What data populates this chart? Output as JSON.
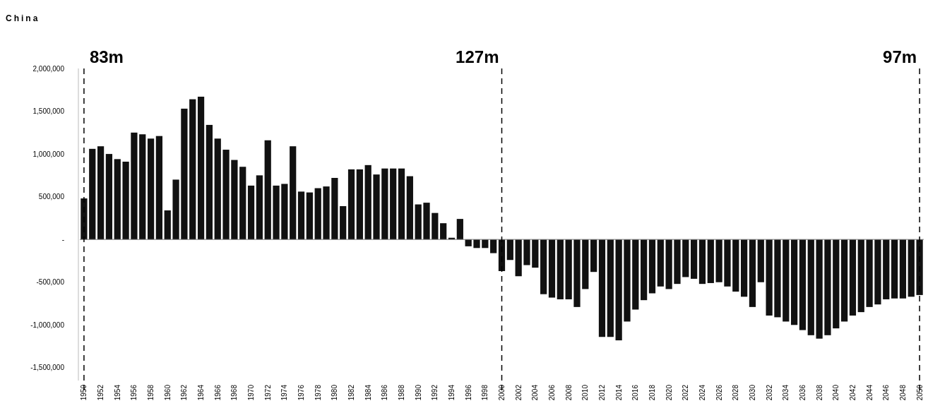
{
  "chart_data": {
    "type": "bar",
    "title": "China",
    "x": [
      1950,
      1951,
      1952,
      1953,
      1954,
      1955,
      1956,
      1957,
      1958,
      1959,
      1960,
      1961,
      1962,
      1963,
      1964,
      1965,
      1966,
      1967,
      1968,
      1969,
      1970,
      1971,
      1972,
      1973,
      1974,
      1975,
      1976,
      1977,
      1978,
      1979,
      1980,
      1981,
      1982,
      1983,
      1984,
      1985,
      1986,
      1987,
      1988,
      1989,
      1990,
      1991,
      1992,
      1993,
      1994,
      1995,
      1996,
      1997,
      1998,
      1999,
      2000,
      2001,
      2002,
      2003,
      2004,
      2005,
      2006,
      2007,
      2008,
      2009,
      2010,
      2011,
      2012,
      2013,
      2014,
      2015,
      2016,
      2017,
      2018,
      2019,
      2020,
      2021,
      2022,
      2023,
      2024,
      2025,
      2026,
      2027,
      2028,
      2029,
      2030,
      2031,
      2032,
      2033,
      2034,
      2035,
      2036,
      2037,
      2038,
      2039,
      2040,
      2041,
      2042,
      2043,
      2044,
      2045,
      2046,
      2047,
      2048,
      2049,
      2050
    ],
    "values": [
      480000,
      1060000,
      1090000,
      1000000,
      940000,
      910000,
      1250000,
      1230000,
      1180000,
      1210000,
      340000,
      700000,
      1530000,
      1640000,
      1670000,
      1340000,
      1180000,
      1050000,
      930000,
      850000,
      630000,
      750000,
      1160000,
      630000,
      650000,
      1090000,
      560000,
      550000,
      600000,
      620000,
      720000,
      390000,
      820000,
      820000,
      870000,
      760000,
      830000,
      830000,
      830000,
      740000,
      410000,
      430000,
      310000,
      190000,
      20000,
      240000,
      -80000,
      -100000,
      -100000,
      -160000,
      -370000,
      -240000,
      -430000,
      -300000,
      -330000,
      -640000,
      -680000,
      -700000,
      -700000,
      -790000,
      -580000,
      -380000,
      -1140000,
      -1140000,
      -1180000,
      -960000,
      -820000,
      -710000,
      -630000,
      -550000,
      -580000,
      -520000,
      -440000,
      -460000,
      -520000,
      -510000,
      -500000,
      -550000,
      -610000,
      -670000,
      -790000,
      -500000,
      -890000,
      -910000,
      -960000,
      -1000000,
      -1060000,
      -1120000,
      -1160000,
      -1120000,
      -1040000,
      -960000,
      -890000,
      -850000,
      -790000,
      -760000,
      -700000,
      -690000,
      -690000,
      -670000,
      -650000
    ],
    "color": "#111111",
    "xlim": [
      1949.5,
      2050.5
    ],
    "xticks": [
      1950,
      1952,
      1954,
      1956,
      1958,
      1960,
      1962,
      1964,
      1966,
      1968,
      1970,
      1972,
      1974,
      1976,
      1978,
      1980,
      1982,
      1984,
      1986,
      1988,
      1990,
      1992,
      1994,
      1996,
      1998,
      2000,
      2002,
      2004,
      2006,
      2008,
      2010,
      2012,
      2014,
      2016,
      2018,
      2020,
      2022,
      2024,
      2026,
      2028,
      2030,
      2032,
      2034,
      2036,
      2038,
      2040,
      2042,
      2044,
      2046,
      2048,
      2050
    ],
    "ylim": [
      -1650000,
      2000000
    ],
    "yticks": [
      {
        "value": -1500000,
        "label": "-1,500,000"
      },
      {
        "value": -1000000,
        "label": "-1,000,000"
      },
      {
        "value": -500000,
        "label": "-500,000"
      },
      {
        "value": 0,
        "label": "-"
      },
      {
        "value": 500000,
        "label": "500,000"
      },
      {
        "value": 1000000,
        "label": "1,000,000"
      },
      {
        "value": 1500000,
        "label": "1,500,000"
      },
      {
        "value": 2000000,
        "label": "2,000,000"
      }
    ],
    "ref_lines": [
      {
        "axis": "x",
        "value": 1950,
        "label": "83m",
        "color": "#000000",
        "line_style": "dashed"
      },
      {
        "axis": "x",
        "value": 2000,
        "label": "127m",
        "color": "#000000",
        "line_style": "dashed"
      },
      {
        "axis": "x",
        "value": 2050,
        "label": "97m",
        "color": "#000000",
        "line_style": "dashed"
      }
    ],
    "grid": false
  }
}
